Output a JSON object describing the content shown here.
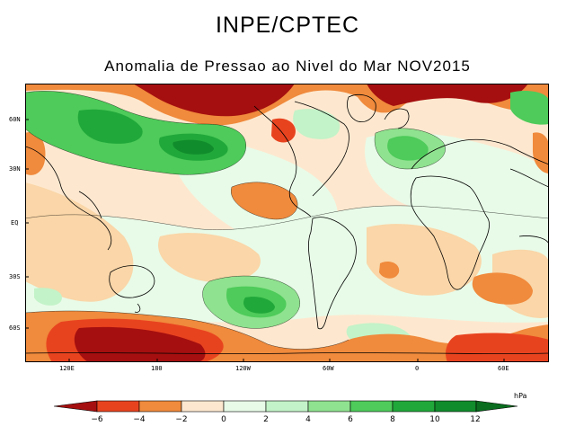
{
  "header": {
    "title": "INPE/CPTEC",
    "subtitle": "Anomalia de Pressao ao Nivel do Mar NOV2015"
  },
  "map": {
    "lat_labels": [
      "60N",
      "30N",
      "EQ",
      "30S",
      "60S"
    ],
    "lon_labels": [
      "120E",
      "180",
      "120W",
      "60W",
      "0",
      "60E"
    ]
  },
  "colorbar": {
    "unit": "hPa",
    "ticks": [
      "−6",
      "−4",
      "−2",
      "0",
      "2",
      "4",
      "6",
      "8",
      "10",
      "12"
    ],
    "colors": {
      "neg6": "#a50f0f",
      "neg4": "#e8431f",
      "neg3": "#f08a3c",
      "neg2": "#fad6a8",
      "neg1": "#fde8cf",
      "pos0": "#e8fbe8",
      "pos2": "#c3f3c8",
      "pos4": "#8fe28f",
      "pos6": "#4ecb5a",
      "pos8": "#21a83a",
      "pos10": "#118c2c",
      "pos12": "#0a6d1f"
    }
  }
}
